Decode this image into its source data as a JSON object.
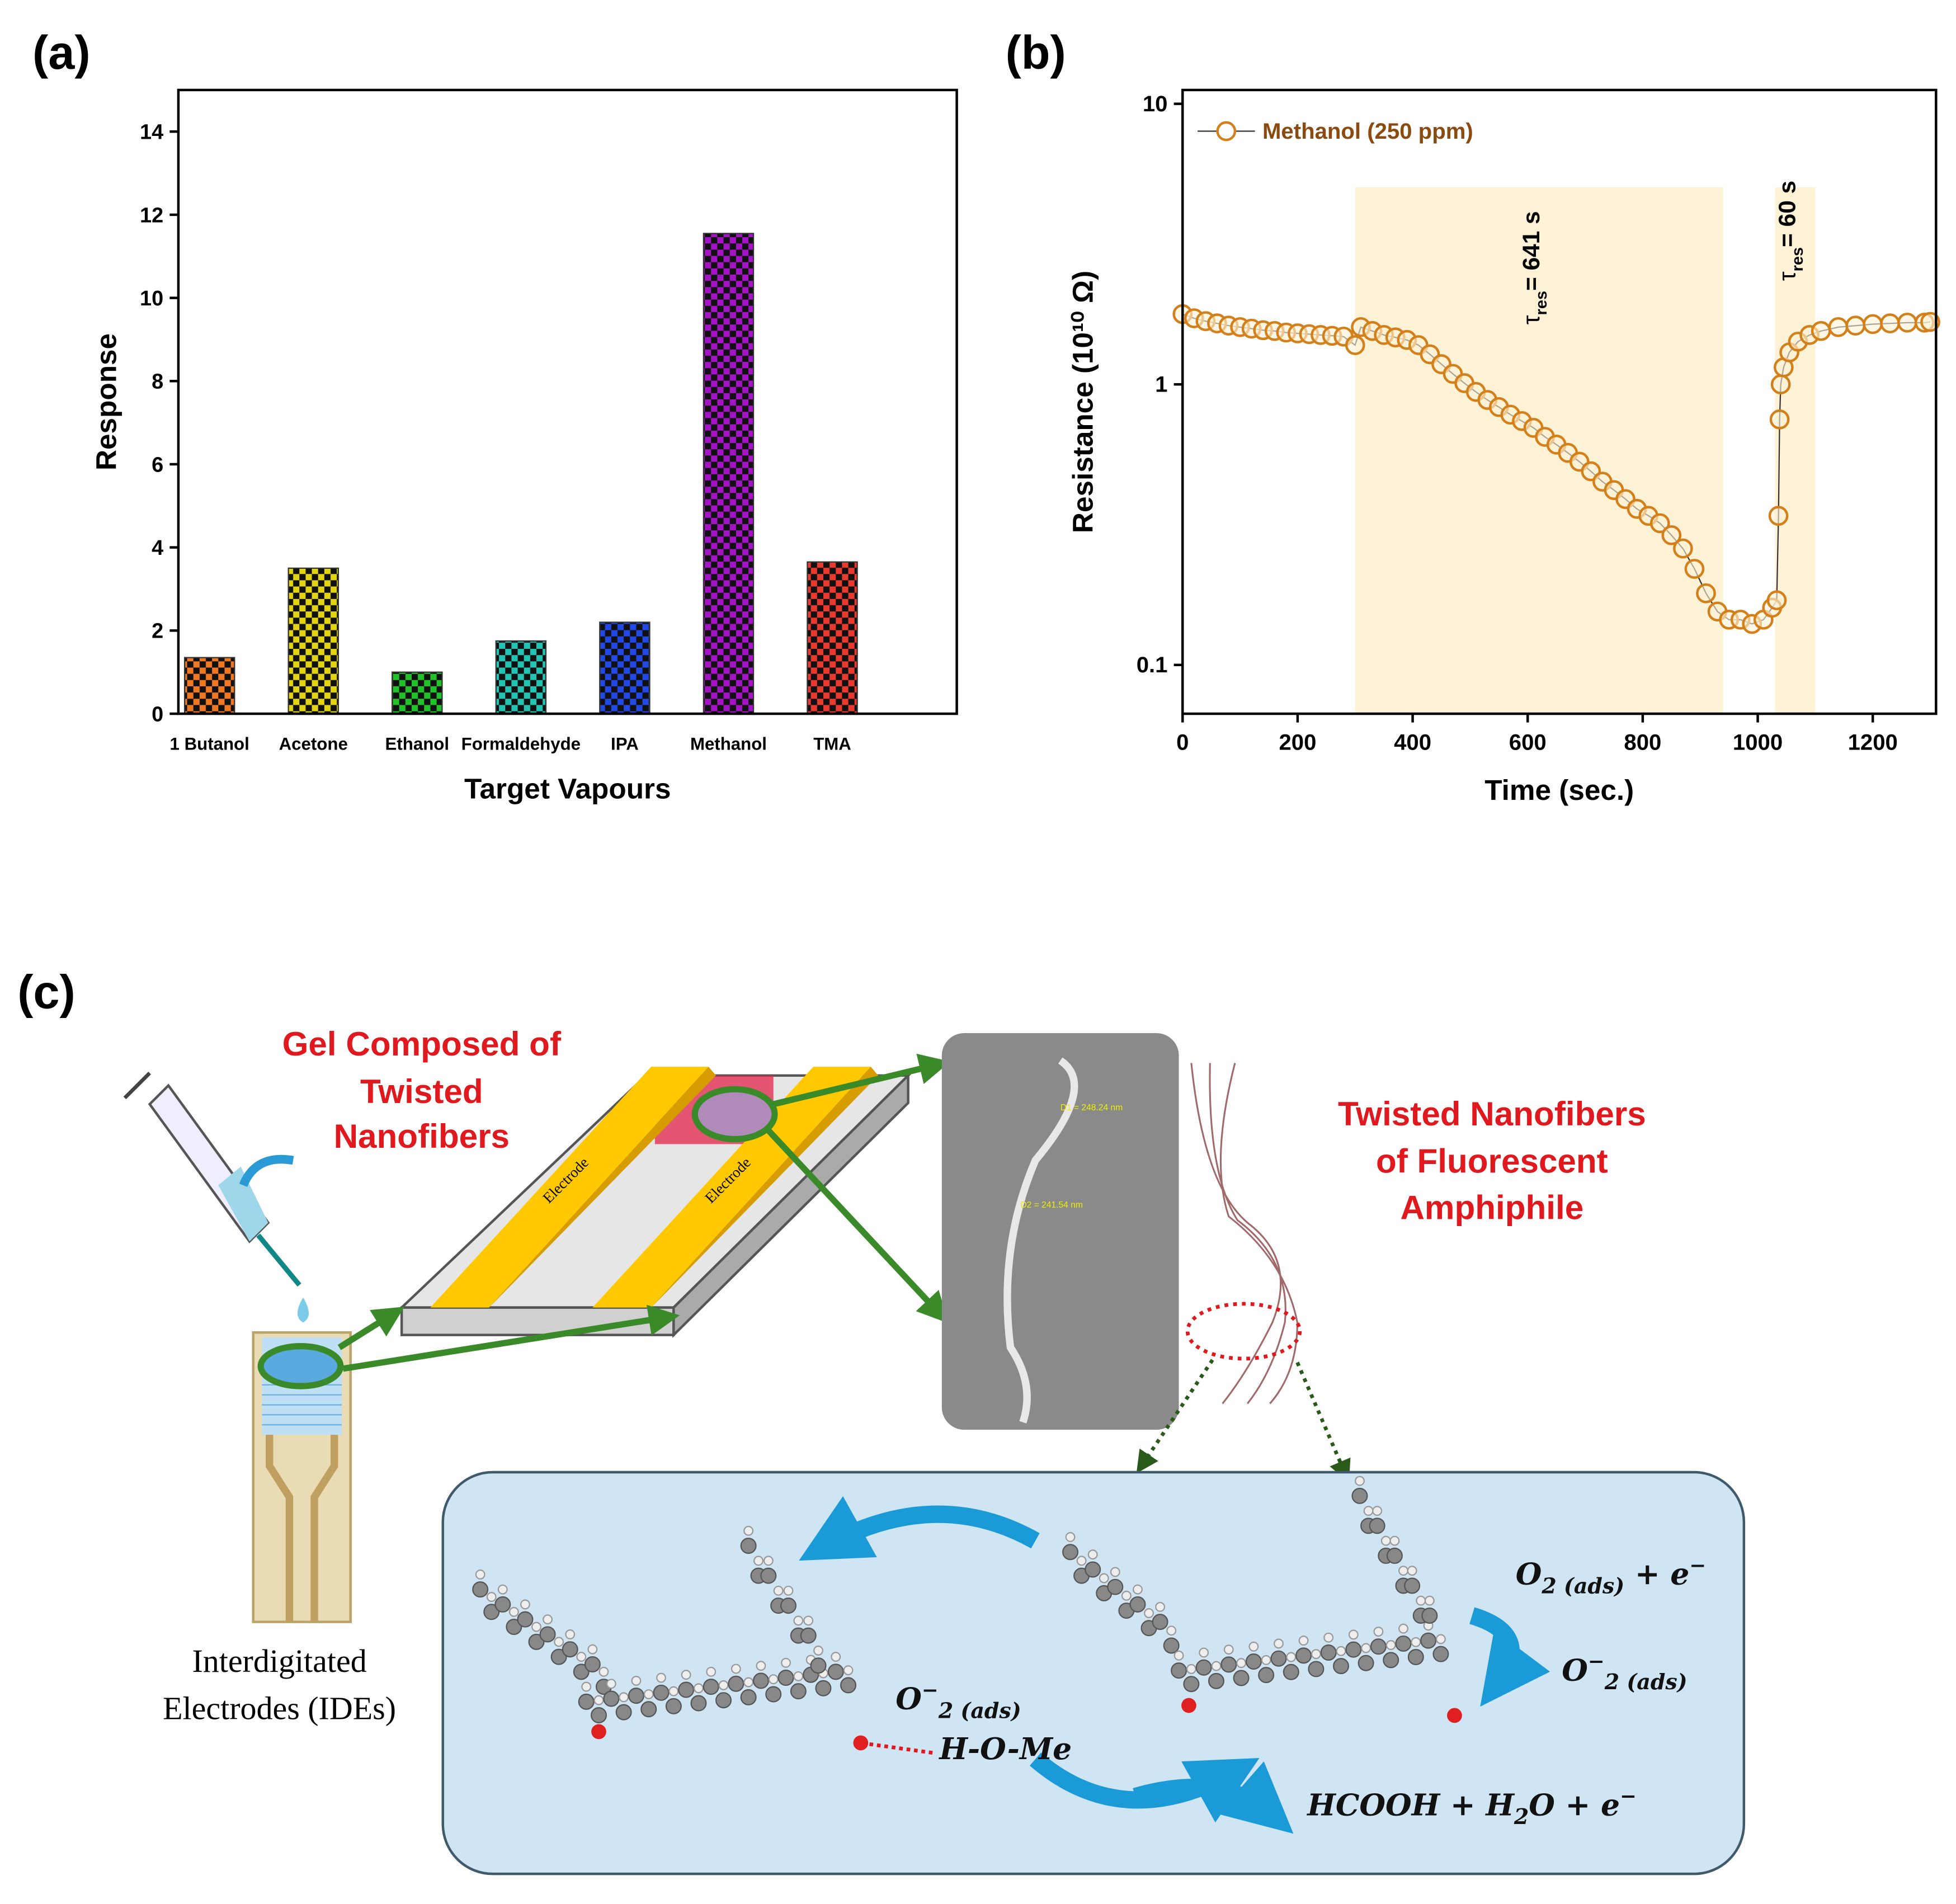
{
  "chart_data": [
    {
      "type": "bar",
      "label": "(a)",
      "x_label": "Target Vapours",
      "y_label": "Response",
      "categories": [
        "1 Butanol",
        "Acetone",
        "Ethanol",
        "Formaldehyde",
        "IPA",
        "Methanol",
        "TMA"
      ],
      "values": [
        1.35,
        3.5,
        1.0,
        1.75,
        2.2,
        11.55,
        3.65
      ],
      "colors": [
        "#f07822",
        "#e2d410",
        "#22c32a",
        "#22c4b4",
        "#2248e6",
        "#a414c6",
        "#ea3a30"
      ],
      "ylim": [
        0,
        15
      ],
      "yticks": [
        0,
        2,
        4,
        6,
        8,
        10,
        12,
        14
      ]
    },
    {
      "type": "scatter",
      "label": "(b)",
      "x_label": "Time (sec.)",
      "y_label": "Resistance (10¹⁰ Ω)",
      "log_y": true,
      "legend": "upper left",
      "x": [
        0,
        20,
        40,
        60,
        80,
        100,
        120,
        140,
        160,
        180,
        200,
        220,
        240,
        260,
        280,
        300,
        310,
        330,
        350,
        370,
        390,
        410,
        430,
        450,
        470,
        490,
        510,
        530,
        550,
        570,
        590,
        610,
        630,
        650,
        670,
        690,
        710,
        730,
        750,
        770,
        790,
        810,
        830,
        850,
        870,
        890,
        910,
        930,
        950,
        970,
        990,
        1010,
        1025,
        1033,
        1036,
        1038,
        1040,
        1045,
        1055,
        1070,
        1090,
        1110,
        1140,
        1170,
        1200,
        1230,
        1260,
        1290,
        1300
      ],
      "series": [
        {
          "name": "Methanol (250 ppm)",
          "color": "#d4801a",
          "values": [
            1.78,
            1.72,
            1.68,
            1.65,
            1.62,
            1.6,
            1.58,
            1.56,
            1.55,
            1.53,
            1.52,
            1.51,
            1.5,
            1.49,
            1.48,
            1.38,
            1.6,
            1.55,
            1.5,
            1.47,
            1.44,
            1.38,
            1.28,
            1.18,
            1.09,
            1.01,
            0.94,
            0.88,
            0.83,
            0.78,
            0.74,
            0.7,
            0.65,
            0.61,
            0.57,
            0.53,
            0.49,
            0.45,
            0.42,
            0.39,
            0.36,
            0.34,
            0.32,
            0.29,
            0.26,
            0.22,
            0.18,
            0.155,
            0.145,
            0.145,
            0.14,
            0.145,
            0.16,
            0.17,
            0.34,
            0.75,
            1.0,
            1.15,
            1.3,
            1.42,
            1.5,
            1.55,
            1.6,
            1.62,
            1.64,
            1.65,
            1.66,
            1.66,
            1.67
          ]
        }
      ],
      "shaded_regions": [
        [
          300,
          940
        ],
        [
          1030,
          1100
        ]
      ],
      "annotations": [
        {
          "symbol": "τ",
          "subscript": "res",
          "text": "= 641 s"
        },
        {
          "symbol": "τ",
          "subscript": "res",
          "text": "= 60 s"
        }
      ],
      "xlim": [
        0,
        1310
      ],
      "xticks": [
        0,
        200,
        400,
        600,
        800,
        1000,
        1200
      ],
      "ylim": [
        0.067,
        11.2
      ],
      "yticks": [
        0.1,
        1,
        10
      ]
    }
  ],
  "diagram": {
    "label": "(c)",
    "gel_label": [
      "Gel Composed of",
      "Twisted",
      "Nanofibers"
    ],
    "nanofiber_label": [
      "Twisted Nanofibers",
      "of Fluorescent",
      "Amphiphile"
    ],
    "ide_label": [
      "Interdigitated",
      "Electrodes (IDEs)"
    ],
    "electrode_labels": [
      "Electrode",
      "Electrode"
    ],
    "sem_labels": [
      "D1 = 248.24 nm",
      "D2 = 241.54 nm"
    ],
    "equation_1": {
      "base": "O",
      "sub": "2 (ads)",
      "rest": " + e",
      "sup": "−"
    },
    "equation_2": {
      "base": "O",
      "sup": "−",
      "sub": "2 (ads)"
    },
    "equation_3": {
      "base": "O",
      "sup": "−",
      "sub": "2 (ads)"
    },
    "hydrogen_bond_label": "H-O-Me",
    "equation_4": {
      "part_1": "HCOOH + H",
      "sub": "2",
      "part_2": "O + e",
      "sup": "−"
    }
  }
}
